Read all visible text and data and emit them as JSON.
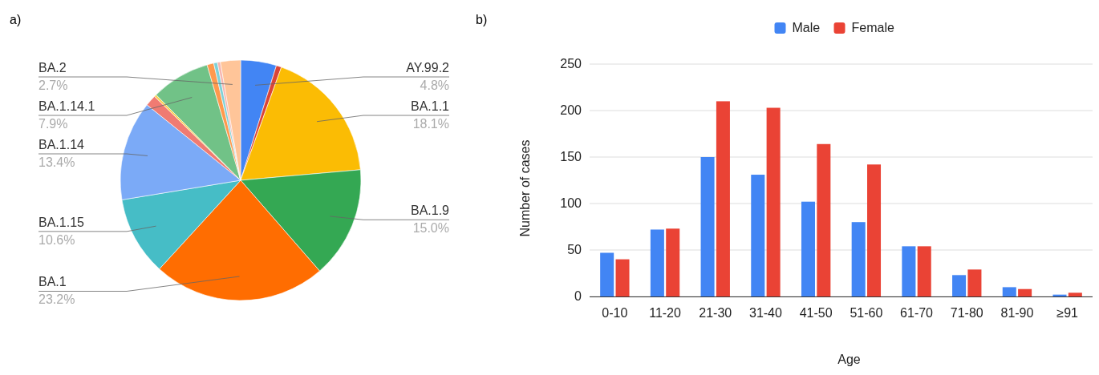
{
  "chart_data": [
    {
      "type": "pie",
      "annotations": [
        "a)"
      ],
      "categories": [
        "AY.99.2",
        null,
        "BA.1.1",
        "BA.1.9",
        "BA.1",
        "BA.1.15",
        "BA.1.14",
        null,
        null,
        "BA.1.14.1",
        null,
        null,
        null,
        "BA.2"
      ],
      "values": [
        4.8,
        0.7,
        18.1,
        15.0,
        23.2,
        10.6,
        13.4,
        1.5,
        0.3,
        7.9,
        0.9,
        0.5,
        0.4,
        2.7
      ],
      "value_labels": [
        "4.8%",
        null,
        "18.1%",
        "15.0%",
        "23.2%",
        "10.6%",
        "13.4%",
        null,
        null,
        "7.9%",
        null,
        null,
        null,
        "2.7%"
      ],
      "colors": [
        "#4285f4",
        "#db4437",
        "#fbbc04",
        "#34a853",
        "#ff6d01",
        "#46bdc6",
        "#7baaf7",
        "#f07b72",
        "#fcd04f",
        "#71c287",
        "#ff994d",
        "#7ed1d7",
        "#f6b6b0",
        "#ffc599"
      ]
    },
    {
      "type": "bar",
      "annotations": [
        "b)"
      ],
      "xlabel": "Age",
      "ylabel": "Number of cases",
      "categories": [
        "0-10",
        "11-20",
        "21-30",
        "31-40",
        "41-50",
        "51-60",
        "61-70",
        "71-80",
        "81-90",
        "≥91"
      ],
      "series": [
        {
          "name": "Male",
          "color": "#4285f4",
          "values": [
            47,
            72,
            150,
            131,
            102,
            80,
            54,
            23,
            10,
            2
          ]
        },
        {
          "name": "Female",
          "color": "#ea4335",
          "values": [
            40,
            73,
            210,
            203,
            164,
            142,
            54,
            29,
            8,
            4
          ]
        }
      ],
      "ylim": [
        0,
        250
      ],
      "yticks": [
        0,
        50,
        100,
        150,
        200,
        250
      ],
      "grid": "y",
      "legend": "top"
    }
  ]
}
